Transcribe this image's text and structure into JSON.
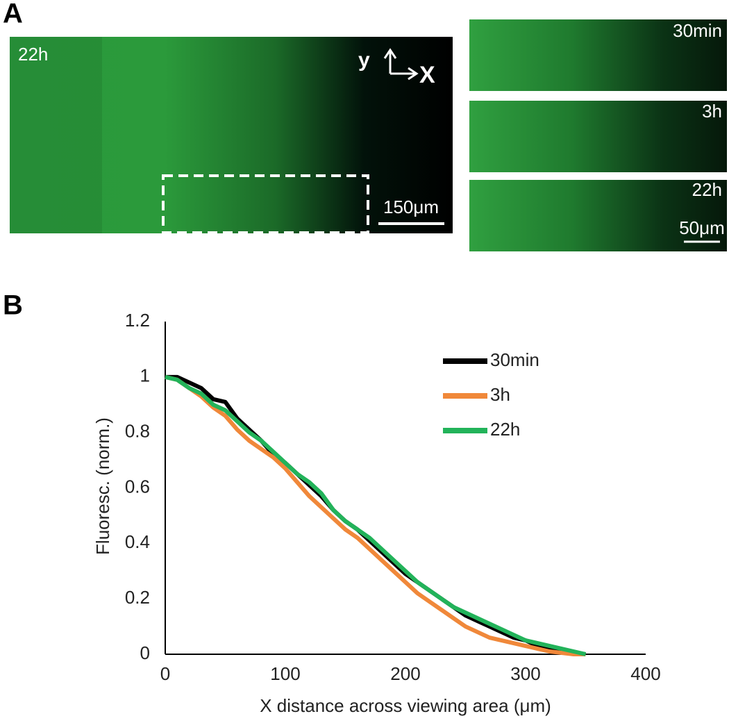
{
  "figure": {
    "panel_labels": [
      "A",
      "B"
    ],
    "panel_a": {
      "main": {
        "label": "22h",
        "axis_y": "y",
        "axis_x": "X",
        "scale_bar": "150μm"
      },
      "insets": [
        {
          "label": "30min"
        },
        {
          "label": "3h"
        },
        {
          "label": "22h"
        }
      ],
      "inset_scale_bar": "50μm"
    }
  },
  "chart_data": {
    "type": "line",
    "x_label": "X distance across viewing area (μm)",
    "y_label": "Fluoresc. (norm.)",
    "xlim": [
      0,
      400
    ],
    "xticks": [
      0,
      100,
      200,
      300,
      400
    ],
    "ylim": [
      0,
      1.2
    ],
    "yticks": [
      0,
      0.2,
      0.4,
      0.6,
      0.8,
      1,
      1.2
    ],
    "x": [
      0,
      10,
      20,
      30,
      40,
      50,
      60,
      70,
      80,
      90,
      100,
      110,
      120,
      130,
      140,
      150,
      160,
      170,
      180,
      190,
      200,
      210,
      220,
      230,
      240,
      250,
      260,
      270,
      280,
      290,
      300,
      310,
      320,
      330,
      340,
      350
    ],
    "series": [
      {
        "name": "30min",
        "color": "#000000",
        "values": [
          1.0,
          1.0,
          0.98,
          0.96,
          0.92,
          0.91,
          0.85,
          0.81,
          0.77,
          0.72,
          0.69,
          0.65,
          0.61,
          0.57,
          0.52,
          0.48,
          0.45,
          0.41,
          0.37,
          0.33,
          0.29,
          0.26,
          0.23,
          0.2,
          0.17,
          0.14,
          0.12,
          0.1,
          0.08,
          0.06,
          0.05,
          0.03,
          0.02,
          0.01,
          0.005,
          0
        ]
      },
      {
        "name": "3h",
        "color": "#f0883a",
        "values": [
          1.0,
          0.99,
          0.96,
          0.93,
          0.89,
          0.86,
          0.81,
          0.77,
          0.74,
          0.71,
          0.67,
          0.62,
          0.57,
          0.53,
          0.49,
          0.45,
          0.42,
          0.38,
          0.34,
          0.3,
          0.26,
          0.22,
          0.19,
          0.16,
          0.13,
          0.1,
          0.08,
          0.06,
          0.05,
          0.04,
          0.03,
          0.02,
          0.01,
          0.005,
          0,
          0
        ]
      },
      {
        "name": "22h",
        "color": "#22b35a",
        "values": [
          1.0,
          0.99,
          0.96,
          0.94,
          0.9,
          0.88,
          0.84,
          0.8,
          0.77,
          0.73,
          0.69,
          0.65,
          0.62,
          0.58,
          0.52,
          0.48,
          0.45,
          0.42,
          0.38,
          0.34,
          0.3,
          0.26,
          0.23,
          0.2,
          0.17,
          0.15,
          0.13,
          0.11,
          0.09,
          0.07,
          0.05,
          0.04,
          0.03,
          0.02,
          0.01,
          0
        ]
      }
    ]
  }
}
